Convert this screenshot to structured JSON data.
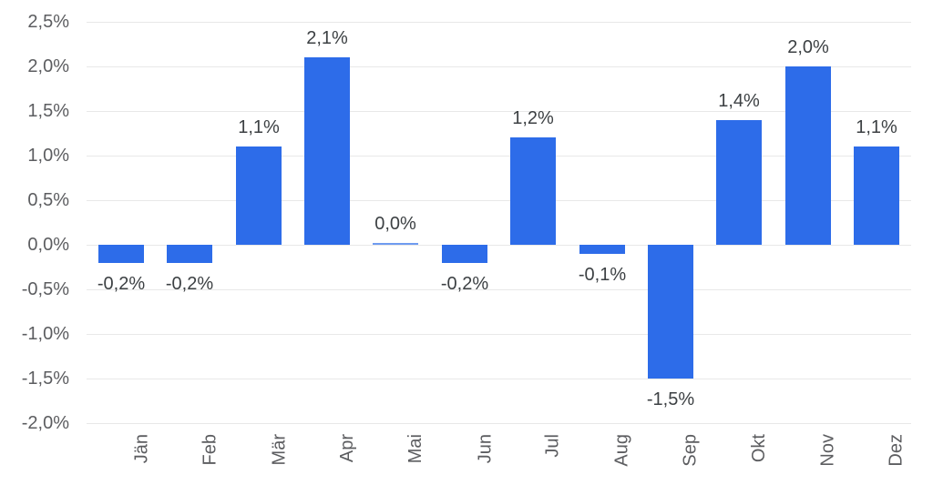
{
  "chart_data": {
    "type": "bar",
    "title": "",
    "xlabel": "",
    "ylabel": "",
    "categories": [
      "Jän",
      "Feb",
      "Mär",
      "Apr",
      "Mai",
      "Jun",
      "Jul",
      "Aug",
      "Sep",
      "Okt",
      "Nov",
      "Dez"
    ],
    "values": [
      -0.2,
      -0.2,
      1.1,
      2.1,
      0.0,
      -0.2,
      1.2,
      -0.1,
      -1.5,
      1.4,
      2.0,
      1.1
    ],
    "value_labels": [
      "-0,2%",
      "-0,2%",
      "1,1%",
      "2,1%",
      "0,0%",
      "-0,2%",
      "1,2%",
      "-0,1%",
      "-1,5%",
      "1,4%",
      "2,0%",
      "1,1%"
    ],
    "ylim": [
      -2.0,
      2.5
    ],
    "ytick_step": 0.5,
    "yticks": [
      2.5,
      2.0,
      1.5,
      1.0,
      0.5,
      0.0,
      -0.5,
      -1.0,
      -1.5,
      -2.0
    ],
    "ytick_labels": [
      "2,5%",
      "2,0%",
      "1,5%",
      "1,0%",
      "0,5%",
      "0,0%",
      "-0,5%",
      "-1,0%",
      "-1,5%",
      "-2,0%"
    ],
    "grid": "horizontal",
    "legend": "none",
    "colors": {
      "bar": "#2d6ce9",
      "zero_bar_sliver": "#6f9bf0",
      "grid": "#e8e8e8",
      "axis_label": "#5c5d60",
      "data_label": "#3c4043",
      "background": "#ffffff"
    }
  }
}
